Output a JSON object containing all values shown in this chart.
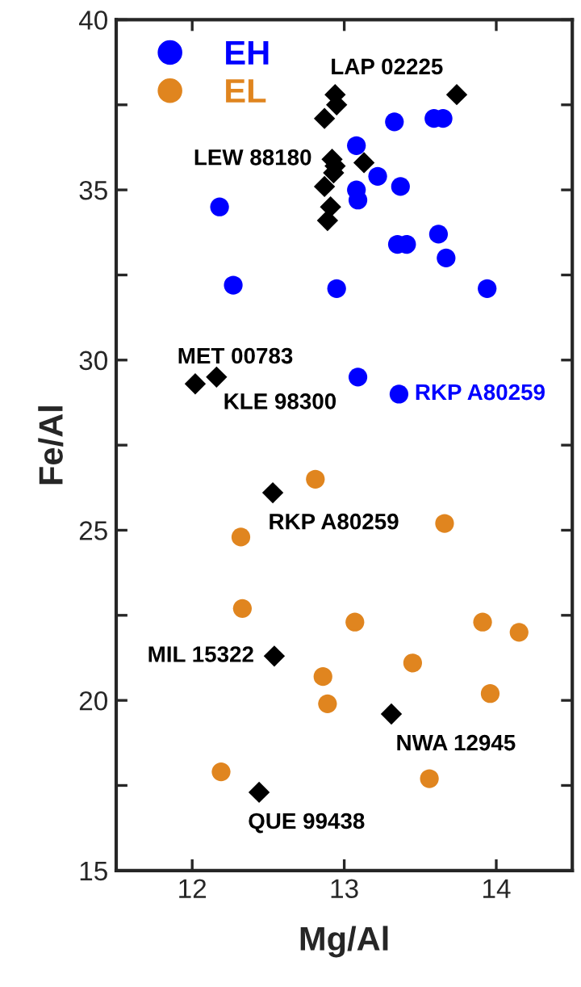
{
  "chart_data": {
    "type": "scatter",
    "xlabel": "Mg/Al",
    "ylabel": "Fe/Al",
    "xlim": [
      11.5,
      14.5
    ],
    "xticks": [
      12,
      13,
      14
    ],
    "ylim": [
      15,
      40
    ],
    "yticks": [
      15,
      {
        "value": 17.5,
        "label": null
      },
      20,
      {
        "value": 22.5,
        "label": null
      },
      25,
      {
        "value": 27.5,
        "label": null
      },
      30,
      {
        "value": 32.5,
        "label": null
      },
      35,
      {
        "value": 37.5,
        "label": null
      },
      40
    ],
    "grid": false,
    "legend": "top left",
    "series": [
      {
        "name": "EH",
        "color": "#0000ff",
        "marker": "circle",
        "x": [
          12.18,
          12.27,
          12.95,
          13.08,
          13.08,
          13.09,
          13.22,
          13.33,
          13.37,
          13.35,
          13.41,
          13.59,
          13.65,
          13.62,
          13.67,
          13.94,
          13.09,
          13.36
        ],
        "values": [
          34.5,
          32.2,
          32.1,
          36.3,
          35.0,
          34.7,
          35.4,
          37.0,
          35.1,
          33.4,
          33.4,
          37.1,
          37.1,
          33.7,
          33.0,
          32.1,
          29.5,
          29.0
        ]
      },
      {
        "name": "EL",
        "color": "#e0851f",
        "marker": "circle",
        "x": [
          12.81,
          12.32,
          13.66,
          12.33,
          13.07,
          13.91,
          14.15,
          12.86,
          12.89,
          13.45,
          13.96,
          12.19,
          13.56
        ],
        "values": [
          26.5,
          24.8,
          25.2,
          22.7,
          22.3,
          22.3,
          22.0,
          20.7,
          19.9,
          21.1,
          20.2,
          17.9,
          17.7
        ]
      },
      {
        "color": "#000000",
        "marker": "diamond",
        "x": [
          12.94,
          12.95,
          12.87,
          12.92,
          12.94,
          12.93,
          13.13,
          12.87,
          12.91,
          12.89,
          13.74,
          12.02,
          12.16,
          12.53,
          12.54,
          13.31,
          12.44
        ],
        "values": [
          37.8,
          37.5,
          37.1,
          35.9,
          35.7,
          35.5,
          35.8,
          35.1,
          34.5,
          34.1,
          37.8,
          29.3,
          29.5,
          26.1,
          21.3,
          19.6,
          17.3
        ]
      }
    ],
    "annotations": [
      {
        "text": "LAP 02225",
        "x": 13.74,
        "y": 37.8
      },
      {
        "text": "LEW 88180",
        "x": 12.92,
        "y": 35.9
      },
      {
        "text": "MET 00783",
        "x": 12.02,
        "y": 29.3
      },
      {
        "text": "KLE 98300",
        "x": 12.16,
        "y": 29.5
      },
      {
        "text": "RKP A80259",
        "x": 13.36,
        "y": 29.0
      },
      {
        "text": "RKP A80259",
        "x": 12.53,
        "y": 26.1
      },
      {
        "text": "MIL 15322",
        "x": 12.54,
        "y": 21.3
      },
      {
        "text": "NWA 12945",
        "x": 13.31,
        "y": 19.6
      },
      {
        "text": "QUE 99438",
        "x": 12.44,
        "y": 17.3
      }
    ]
  }
}
